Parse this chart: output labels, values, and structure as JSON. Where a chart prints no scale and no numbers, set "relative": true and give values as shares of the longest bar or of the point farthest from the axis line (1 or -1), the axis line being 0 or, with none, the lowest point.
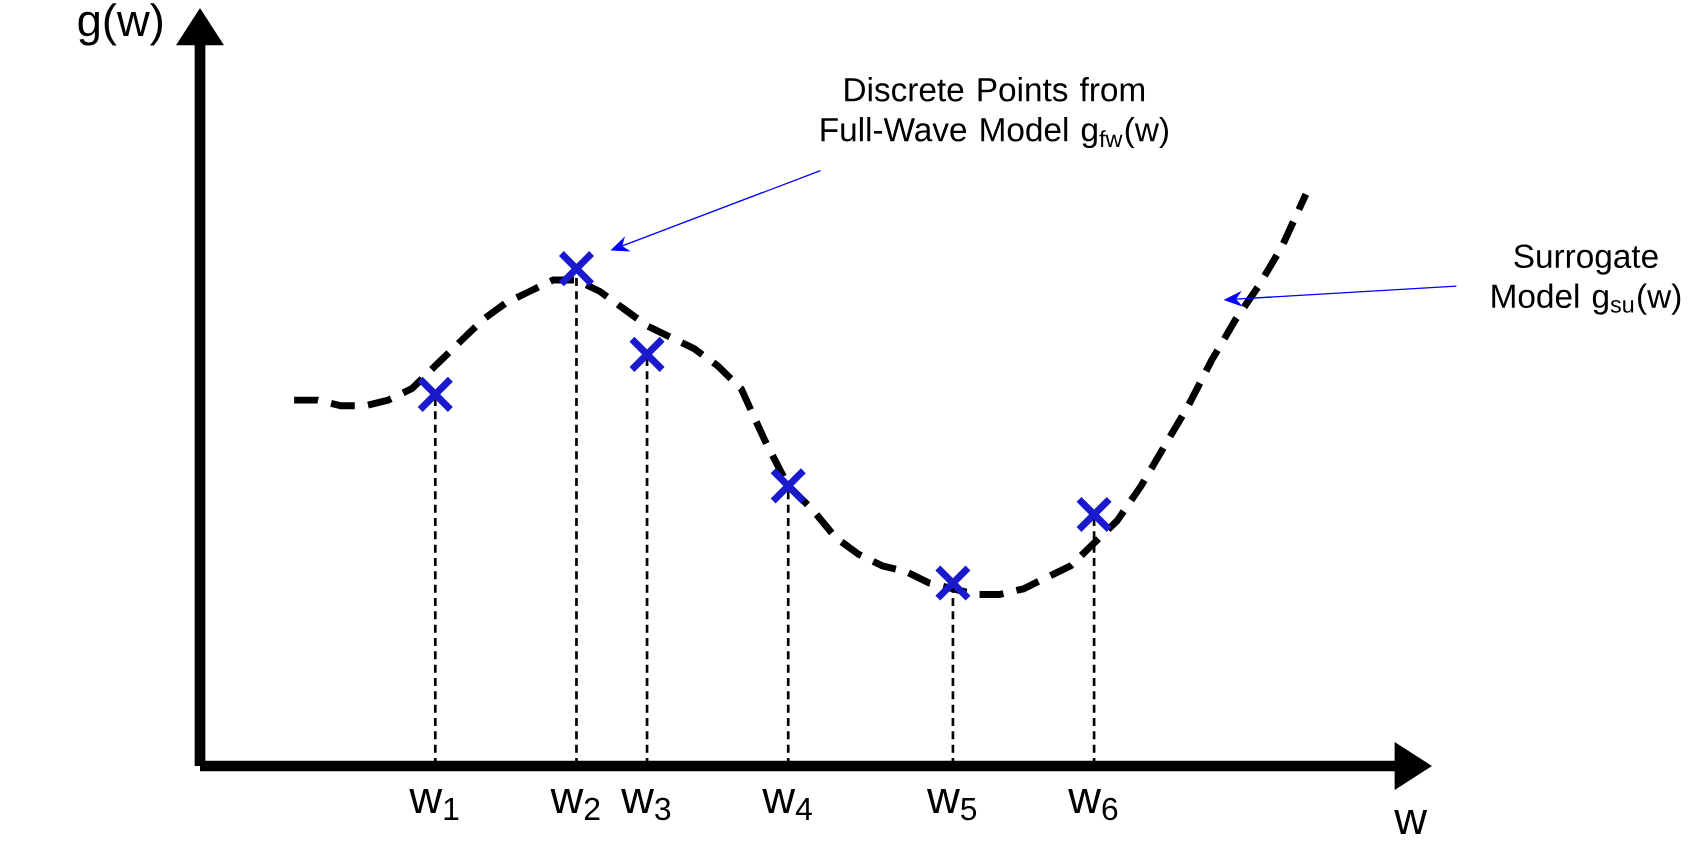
{
  "chart_data": {
    "type": "line",
    "relative": true,
    "xlabel": "w",
    "ylabel": "g(w)",
    "categories": [
      null,
      null,
      null,
      null,
      null,
      null,
      "w$_{1}$",
      null,
      null,
      null,
      null,
      null,
      "w$_{2}$",
      null,
      null,
      "w$_{3}$",
      null,
      null,
      null,
      null,
      null,
      "w$_{4}$",
      null,
      null,
      null,
      null,
      null,
      null,
      "w$_{5}$",
      null,
      null,
      null,
      null,
      null,
      "w$_{6}$",
      null,
      null,
      null,
      null,
      null,
      null,
      null,
      null,
      null
    ],
    "series": [
      {
        "type": "line",
        "color": "#000000",
        "line_style": "dashed",
        "values": [
          0.64,
          0.64,
          0.63,
          0.63,
          0.64,
          0.66,
          0.7,
          0.74,
          0.78,
          0.81,
          0.83,
          0.85,
          0.85,
          0.83,
          0.8,
          0.77,
          0.75,
          0.73,
          0.7,
          0.66,
          0.57,
          0.49,
          0.45,
          0.4,
          0.37,
          0.35,
          0.34,
          0.32,
          0.31,
          0.3,
          0.3,
          0.31,
          0.33,
          0.35,
          0.39,
          0.43,
          0.49,
          0.56,
          0.63,
          0.71,
          0.78,
          0.84,
          0.91,
          1
        ]
      },
      {
        "type": "lollipop",
        "color": "#1a1acc",
        "marker": "cross",
        "values": [
          null,
          null,
          null,
          null,
          null,
          null,
          0.65,
          null,
          null,
          null,
          null,
          null,
          0.87,
          null,
          null,
          0.72,
          null,
          null,
          null,
          null,
          null,
          0.49,
          null,
          null,
          null,
          null,
          null,
          null,
          0.32,
          null,
          null,
          null,
          null,
          null,
          0.44,
          null,
          null,
          null,
          null,
          null,
          null,
          null,
          null,
          null
        ]
      }
    ],
    "annotations": [
      "Discrete Points from Full-Wave Model g$_{fw}$(w)",
      "Surrogate Model g$_{su}$(w)"
    ]
  }
}
